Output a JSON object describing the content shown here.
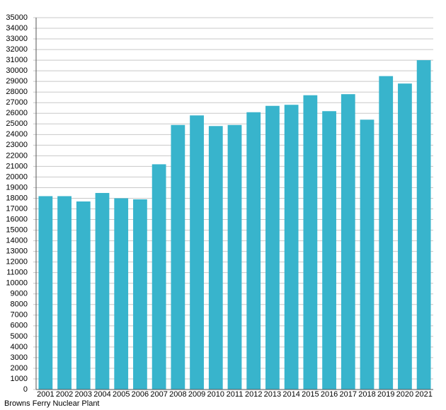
{
  "chart_data": {
    "type": "bar",
    "x_label": "Browns Ferry Nuclear Plant",
    "categories": [
      "2001",
      "2002",
      "2003",
      "2004",
      "2005",
      "2006",
      "2007",
      "2008",
      "2009",
      "2010",
      "2011",
      "2012",
      "2013",
      "2014",
      "2015",
      "2016",
      "2017",
      "2018",
      "2019",
      "2020",
      "2021"
    ],
    "values": [
      18200,
      18200,
      17700,
      18500,
      18000,
      17900,
      21200,
      24900,
      25800,
      24800,
      24900,
      26100,
      26700,
      26800,
      27700,
      26200,
      27800,
      25400,
      29500,
      28800,
      31000
    ],
    "color": "#38b4cc",
    "ylim": [
      0,
      35000
    ],
    "yticks": [
      0,
      1000,
      2000,
      3000,
      4000,
      5000,
      6000,
      7000,
      8000,
      9000,
      10000,
      11000,
      12000,
      13000,
      14000,
      15000,
      16000,
      17000,
      18000,
      19000,
      20000,
      21000,
      22000,
      23000,
      24000,
      25000,
      26000,
      27000,
      28000,
      29000,
      30000,
      31000,
      32000,
      33000,
      34000,
      35000
    ],
    "grid": true
  }
}
